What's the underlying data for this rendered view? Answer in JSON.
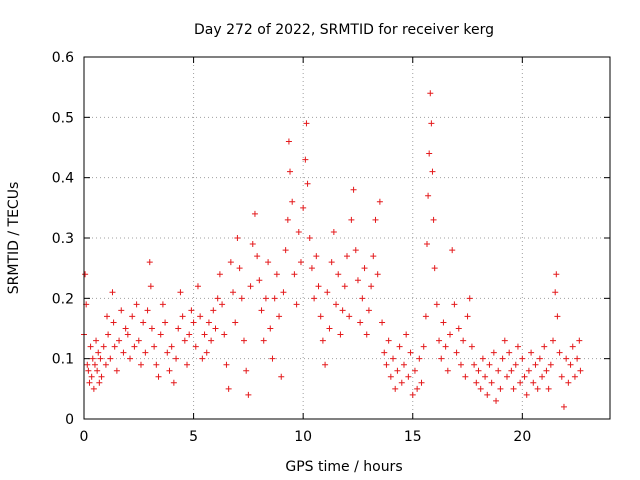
{
  "chart_data": {
    "type": "scatter",
    "title": "Day 272 of 2022, SRMTID for receiver kerg",
    "xlabel": "GPS time / hours",
    "ylabel": "SRMTID / TECUs",
    "xlim": [
      0,
      24
    ],
    "ylim": [
      0,
      0.6
    ],
    "xticks": [
      0,
      5,
      10,
      15,
      20
    ],
    "yticks": [
      0,
      0.1,
      0.2,
      0.3,
      0.4,
      0.5,
      0.6
    ],
    "xtick_labels": [
      "0",
      "5",
      "10",
      "15",
      "20"
    ],
    "ytick_labels": [
      "0",
      "0.1",
      "0.2",
      "0.3",
      "0.4",
      "0.5",
      "0.6"
    ],
    "grid": true,
    "marker": "+",
    "series": [
      {
        "name": "SRMTID",
        "color": "#e41a1c",
        "points": [
          [
            0.0,
            0.14
          ],
          [
            0.05,
            0.24
          ],
          [
            0.1,
            0.19
          ],
          [
            0.15,
            0.09
          ],
          [
            0.2,
            0.08
          ],
          [
            0.25,
            0.06
          ],
          [
            0.3,
            0.12
          ],
          [
            0.35,
            0.07
          ],
          [
            0.4,
            0.1
          ],
          [
            0.45,
            0.05
          ],
          [
            0.5,
            0.09
          ],
          [
            0.55,
            0.13
          ],
          [
            0.6,
            0.08
          ],
          [
            0.65,
            0.11
          ],
          [
            0.7,
            0.06
          ],
          [
            0.75,
            0.1
          ],
          [
            0.8,
            0.07
          ],
          [
            0.9,
            0.12
          ],
          [
            1.0,
            0.09
          ],
          [
            1.05,
            0.17
          ],
          [
            1.1,
            0.14
          ],
          [
            1.2,
            0.1
          ],
          [
            1.3,
            0.21
          ],
          [
            1.35,
            0.16
          ],
          [
            1.4,
            0.12
          ],
          [
            1.5,
            0.08
          ],
          [
            1.6,
            0.13
          ],
          [
            1.7,
            0.18
          ],
          [
            1.8,
            0.11
          ],
          [
            1.9,
            0.15
          ],
          [
            2.0,
            0.14
          ],
          [
            2.1,
            0.1
          ],
          [
            2.2,
            0.17
          ],
          [
            2.3,
            0.12
          ],
          [
            2.4,
            0.19
          ],
          [
            2.5,
            0.13
          ],
          [
            2.6,
            0.09
          ],
          [
            2.7,
            0.16
          ],
          [
            2.8,
            0.11
          ],
          [
            2.9,
            0.18
          ],
          [
            3.0,
            0.26
          ],
          [
            3.05,
            0.22
          ],
          [
            3.1,
            0.15
          ],
          [
            3.2,
            0.12
          ],
          [
            3.3,
            0.09
          ],
          [
            3.4,
            0.07
          ],
          [
            3.5,
            0.14
          ],
          [
            3.6,
            0.19
          ],
          [
            3.7,
            0.16
          ],
          [
            3.8,
            0.11
          ],
          [
            3.9,
            0.08
          ],
          [
            4.0,
            0.12
          ],
          [
            4.1,
            0.06
          ],
          [
            4.2,
            0.1
          ],
          [
            4.3,
            0.15
          ],
          [
            4.4,
            0.21
          ],
          [
            4.5,
            0.17
          ],
          [
            4.6,
            0.13
          ],
          [
            4.7,
            0.09
          ],
          [
            4.8,
            0.14
          ],
          [
            4.9,
            0.18
          ],
          [
            5.0,
            0.16
          ],
          [
            5.1,
            0.12
          ],
          [
            5.2,
            0.22
          ],
          [
            5.3,
            0.17
          ],
          [
            5.4,
            0.1
          ],
          [
            5.5,
            0.14
          ],
          [
            5.6,
            0.11
          ],
          [
            5.7,
            0.16
          ],
          [
            5.8,
            0.13
          ],
          [
            5.9,
            0.18
          ],
          [
            6.0,
            0.15
          ],
          [
            6.1,
            0.2
          ],
          [
            6.2,
            0.24
          ],
          [
            6.3,
            0.19
          ],
          [
            6.4,
            0.14
          ],
          [
            6.5,
            0.09
          ],
          [
            6.6,
            0.05
          ],
          [
            6.7,
            0.26
          ],
          [
            6.8,
            0.21
          ],
          [
            6.9,
            0.16
          ],
          [
            7.0,
            0.3
          ],
          [
            7.1,
            0.25
          ],
          [
            7.2,
            0.2
          ],
          [
            7.3,
            0.13
          ],
          [
            7.4,
            0.08
          ],
          [
            7.5,
            0.04
          ],
          [
            7.6,
            0.22
          ],
          [
            7.7,
            0.29
          ],
          [
            7.8,
            0.34
          ],
          [
            7.9,
            0.27
          ],
          [
            8.0,
            0.23
          ],
          [
            8.1,
            0.18
          ],
          [
            8.2,
            0.13
          ],
          [
            8.3,
            0.2
          ],
          [
            8.4,
            0.26
          ],
          [
            8.5,
            0.15
          ],
          [
            8.6,
            0.1
          ],
          [
            8.7,
            0.2
          ],
          [
            8.8,
            0.24
          ],
          [
            8.9,
            0.17
          ],
          [
            9.0,
            0.07
          ],
          [
            9.1,
            0.21
          ],
          [
            9.2,
            0.28
          ],
          [
            9.3,
            0.33
          ],
          [
            9.35,
            0.46
          ],
          [
            9.4,
            0.41
          ],
          [
            9.5,
            0.36
          ],
          [
            9.6,
            0.24
          ],
          [
            9.7,
            0.19
          ],
          [
            9.8,
            0.31
          ],
          [
            9.9,
            0.26
          ],
          [
            10.0,
            0.35
          ],
          [
            10.1,
            0.43
          ],
          [
            10.15,
            0.49
          ],
          [
            10.2,
            0.39
          ],
          [
            10.3,
            0.3
          ],
          [
            10.4,
            0.25
          ],
          [
            10.5,
            0.2
          ],
          [
            10.6,
            0.27
          ],
          [
            10.7,
            0.22
          ],
          [
            10.8,
            0.17
          ],
          [
            10.9,
            0.13
          ],
          [
            11.0,
            0.09
          ],
          [
            11.1,
            0.21
          ],
          [
            11.2,
            0.15
          ],
          [
            11.3,
            0.26
          ],
          [
            11.4,
            0.31
          ],
          [
            11.5,
            0.19
          ],
          [
            11.6,
            0.24
          ],
          [
            11.7,
            0.14
          ],
          [
            11.8,
            0.18
          ],
          [
            11.9,
            0.22
          ],
          [
            12.0,
            0.27
          ],
          [
            12.1,
            0.17
          ],
          [
            12.2,
            0.33
          ],
          [
            12.3,
            0.38
          ],
          [
            12.4,
            0.28
          ],
          [
            12.5,
            0.23
          ],
          [
            12.6,
            0.16
          ],
          [
            12.7,
            0.2
          ],
          [
            12.8,
            0.25
          ],
          [
            12.9,
            0.14
          ],
          [
            13.0,
            0.18
          ],
          [
            13.1,
            0.22
          ],
          [
            13.2,
            0.27
          ],
          [
            13.3,
            0.33
          ],
          [
            13.4,
            0.24
          ],
          [
            13.5,
            0.36
          ],
          [
            13.6,
            0.16
          ],
          [
            13.7,
            0.11
          ],
          [
            13.8,
            0.09
          ],
          [
            13.9,
            0.13
          ],
          [
            14.0,
            0.07
          ],
          [
            14.1,
            0.1
          ],
          [
            14.2,
            0.05
          ],
          [
            14.3,
            0.08
          ],
          [
            14.4,
            0.12
          ],
          [
            14.5,
            0.06
          ],
          [
            14.6,
            0.09
          ],
          [
            14.7,
            0.14
          ],
          [
            14.8,
            0.07
          ],
          [
            14.9,
            0.11
          ],
          [
            15.0,
            0.04
          ],
          [
            15.1,
            0.08
          ],
          [
            15.2,
            0.05
          ],
          [
            15.3,
            0.1
          ],
          [
            15.4,
            0.06
          ],
          [
            15.5,
            0.12
          ],
          [
            15.6,
            0.17
          ],
          [
            15.65,
            0.29
          ],
          [
            15.7,
            0.37
          ],
          [
            15.75,
            0.44
          ],
          [
            15.8,
            0.54
          ],
          [
            15.85,
            0.49
          ],
          [
            15.9,
            0.41
          ],
          [
            15.95,
            0.33
          ],
          [
            16.0,
            0.25
          ],
          [
            16.1,
            0.19
          ],
          [
            16.2,
            0.13
          ],
          [
            16.3,
            0.1
          ],
          [
            16.4,
            0.16
          ],
          [
            16.5,
            0.12
          ],
          [
            16.6,
            0.08
          ],
          [
            16.7,
            0.14
          ],
          [
            16.8,
            0.28
          ],
          [
            16.9,
            0.19
          ],
          [
            17.0,
            0.11
          ],
          [
            17.1,
            0.15
          ],
          [
            17.2,
            0.09
          ],
          [
            17.3,
            0.13
          ],
          [
            17.4,
            0.07
          ],
          [
            17.5,
            0.17
          ],
          [
            17.6,
            0.2
          ],
          [
            17.7,
            0.12
          ],
          [
            17.8,
            0.09
          ],
          [
            17.9,
            0.06
          ],
          [
            18.0,
            0.08
          ],
          [
            18.1,
            0.05
          ],
          [
            18.2,
            0.1
          ],
          [
            18.3,
            0.07
          ],
          [
            18.4,
            0.04
          ],
          [
            18.5,
            0.09
          ],
          [
            18.6,
            0.06
          ],
          [
            18.7,
            0.11
          ],
          [
            18.8,
            0.03
          ],
          [
            18.9,
            0.08
          ],
          [
            19.0,
            0.05
          ],
          [
            19.1,
            0.1
          ],
          [
            19.2,
            0.13
          ],
          [
            19.3,
            0.07
          ],
          [
            19.4,
            0.11
          ],
          [
            19.5,
            0.08
          ],
          [
            19.6,
            0.05
          ],
          [
            19.7,
            0.09
          ],
          [
            19.8,
            0.12
          ],
          [
            19.9,
            0.06
          ],
          [
            20.0,
            0.1
          ],
          [
            20.1,
            0.07
          ],
          [
            20.2,
            0.04
          ],
          [
            20.3,
            0.08
          ],
          [
            20.4,
            0.11
          ],
          [
            20.5,
            0.06
          ],
          [
            20.6,
            0.09
          ],
          [
            20.7,
            0.05
          ],
          [
            20.8,
            0.1
          ],
          [
            20.9,
            0.07
          ],
          [
            21.0,
            0.12
          ],
          [
            21.1,
            0.08
          ],
          [
            21.2,
            0.05
          ],
          [
            21.3,
            0.09
          ],
          [
            21.4,
            0.13
          ],
          [
            21.5,
            0.21
          ],
          [
            21.55,
            0.24
          ],
          [
            21.6,
            0.17
          ],
          [
            21.7,
            0.11
          ],
          [
            21.8,
            0.07
          ],
          [
            21.9,
            0.02
          ],
          [
            22.0,
            0.1
          ],
          [
            22.1,
            0.06
          ],
          [
            22.2,
            0.09
          ],
          [
            22.3,
            0.12
          ],
          [
            22.4,
            0.07
          ],
          [
            22.5,
            0.1
          ],
          [
            22.6,
            0.13
          ],
          [
            22.65,
            0.08
          ]
        ]
      }
    ]
  }
}
